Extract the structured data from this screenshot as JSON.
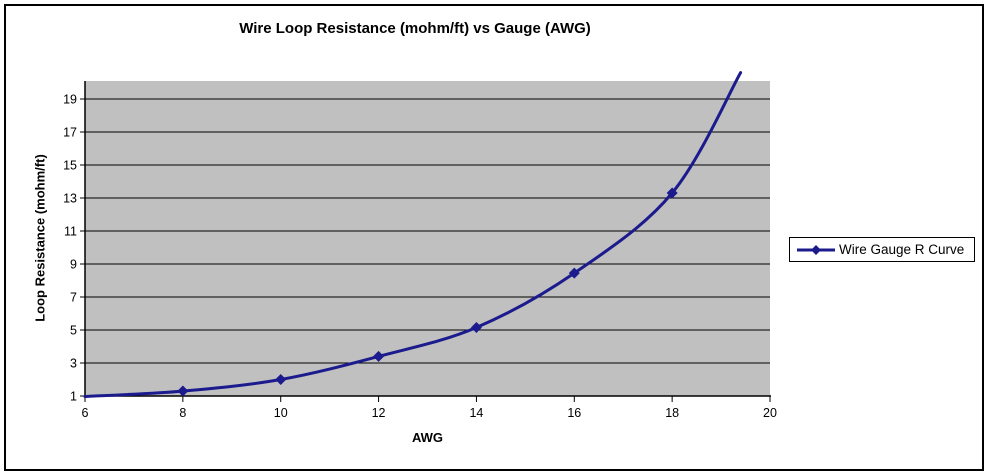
{
  "chart_data": {
    "type": "line",
    "title": "Wire Loop Resistance (mohm/ft) vs Gauge (AWG)",
    "xlabel": "AWG",
    "ylabel": "Loop Resistance (mohm/ft)",
    "xlim": [
      6,
      20
    ],
    "ylim": [
      1,
      20
    ],
    "x_ticks": [
      6,
      8,
      10,
      12,
      14,
      16,
      18,
      20
    ],
    "y_ticks": [
      1,
      3,
      5,
      7,
      9,
      11,
      13,
      15,
      17,
      19
    ],
    "grid": "horizontal-only",
    "plot_bg_color": "#c0c0c0",
    "gridline_color": "#000000",
    "axis_color": "#000000",
    "legend_position": "right-outside",
    "series": [
      {
        "name": "Wire Gauge R Curve",
        "color": "#1b1b8e",
        "marker": "diamond",
        "smoothed": true,
        "points": [
          {
            "x": 6,
            "y": 0.97
          },
          {
            "x": 8,
            "y": 1.3
          },
          {
            "x": 10,
            "y": 2.0
          },
          {
            "x": 12,
            "y": 3.4
          },
          {
            "x": 14,
            "y": 5.15
          },
          {
            "x": 16,
            "y": 8.45
          },
          {
            "x": 18,
            "y": 13.3
          },
          {
            "x": 19.4,
            "y": 20.6
          }
        ],
        "marker_x": [
          8,
          10,
          12,
          14,
          16,
          18
        ]
      }
    ]
  }
}
